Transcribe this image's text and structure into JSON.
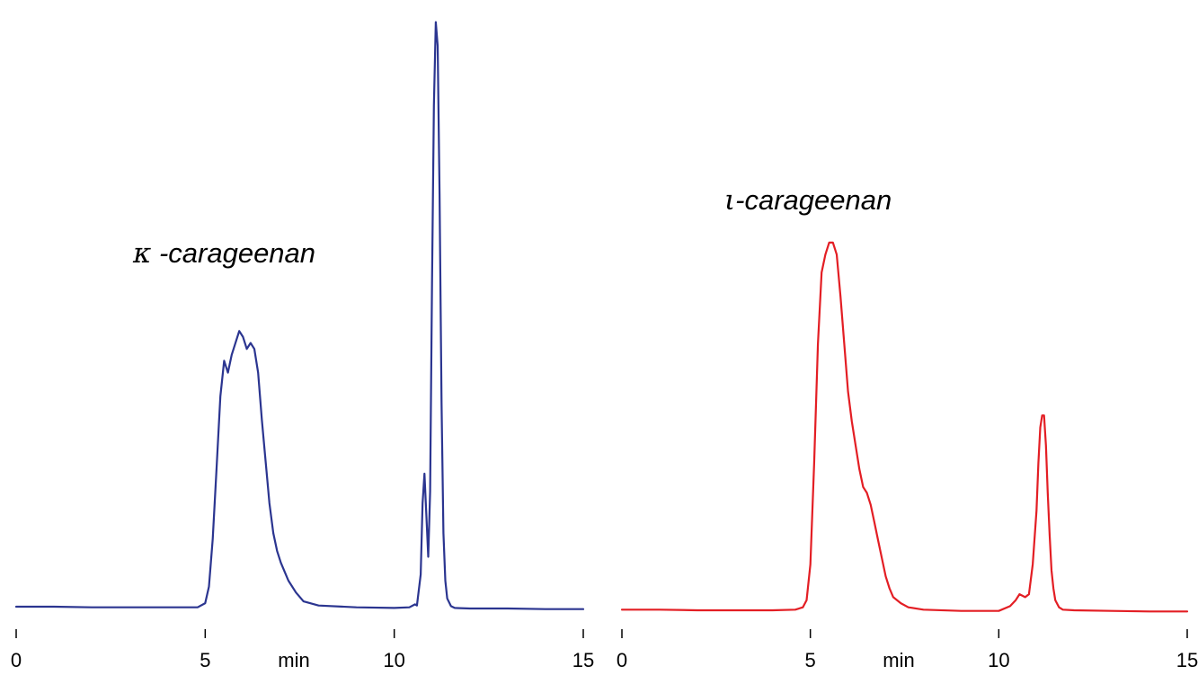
{
  "chart_data": [
    {
      "type": "line",
      "label_greek": "κ",
      "label_text": " -carageenan",
      "x_unit": "min",
      "xlim": [
        0,
        15
      ],
      "x_ticks": [
        "0",
        "5",
        "10",
        "15"
      ],
      "y_axis_shown": false,
      "y_relative_range": [
        0,
        1
      ],
      "color": "#2b3590",
      "series": [
        {
          "x": [
            0,
            1,
            2,
            3,
            4,
            4.8,
            5.0,
            5.1,
            5.2,
            5.3,
            5.4,
            5.5,
            5.6,
            5.7,
            5.8,
            5.9,
            6.0,
            6.1,
            6.2,
            6.3,
            6.4,
            6.5,
            6.6,
            6.7,
            6.8,
            6.9,
            7.0,
            7.2,
            7.4,
            7.6,
            8,
            9,
            10,
            10.4,
            10.55,
            10.6,
            10.7,
            10.75,
            10.8,
            10.85,
            10.9,
            10.95,
            11.0,
            11.05,
            11.1,
            11.15,
            11.2,
            11.25,
            11.3,
            11.35,
            11.4,
            11.5,
            11.6,
            12,
            13,
            14,
            15
          ],
          "y": [
            0.006,
            0.006,
            0.005,
            0.005,
            0.005,
            0.005,
            0.012,
            0.04,
            0.12,
            0.24,
            0.36,
            0.42,
            0.4,
            0.43,
            0.45,
            0.47,
            0.46,
            0.44,
            0.45,
            0.44,
            0.4,
            0.32,
            0.25,
            0.18,
            0.13,
            0.1,
            0.08,
            0.05,
            0.03,
            0.015,
            0.008,
            0.005,
            0.004,
            0.005,
            0.01,
            0.008,
            0.06,
            0.18,
            0.23,
            0.16,
            0.09,
            0.2,
            0.55,
            0.85,
            0.99,
            0.95,
            0.7,
            0.35,
            0.13,
            0.05,
            0.02,
            0.007,
            0.004,
            0.003,
            0.003,
            0.002,
            0.002
          ]
        }
      ]
    },
    {
      "type": "line",
      "label_greek": "ι",
      "label_text": "-carageenan",
      "x_unit": "min",
      "xlim": [
        0,
        15
      ],
      "x_ticks": [
        "0",
        "5",
        "10",
        "15"
      ],
      "y_axis_shown": false,
      "y_relative_range": [
        0,
        1
      ],
      "color": "#e31e24",
      "series": [
        {
          "x": [
            0,
            1,
            2,
            3,
            4,
            4.6,
            4.8,
            4.9,
            5.0,
            5.1,
            5.2,
            5.3,
            5.4,
            5.5,
            5.6,
            5.7,
            5.8,
            5.9,
            6.0,
            6.1,
            6.2,
            6.3,
            6.4,
            6.5,
            6.6,
            6.7,
            6.8,
            6.9,
            7.0,
            7.1,
            7.2,
            7.4,
            7.6,
            8,
            9,
            10,
            10.3,
            10.45,
            10.55,
            10.7,
            10.8,
            10.9,
            11.0,
            11.05,
            11.1,
            11.15,
            11.2,
            11.25,
            11.3,
            11.35,
            11.4,
            11.45,
            11.5,
            11.6,
            11.7,
            12,
            13,
            14,
            15
          ],
          "y": [
            0.004,
            0.004,
            0.003,
            0.003,
            0.003,
            0.004,
            0.008,
            0.02,
            0.08,
            0.25,
            0.45,
            0.57,
            0.6,
            0.62,
            0.62,
            0.6,
            0.53,
            0.45,
            0.37,
            0.32,
            0.28,
            0.24,
            0.21,
            0.2,
            0.18,
            0.15,
            0.12,
            0.09,
            0.06,
            0.04,
            0.025,
            0.015,
            0.008,
            0.004,
            0.002,
            0.002,
            0.01,
            0.02,
            0.03,
            0.025,
            0.03,
            0.08,
            0.17,
            0.25,
            0.31,
            0.33,
            0.33,
            0.28,
            0.2,
            0.13,
            0.07,
            0.04,
            0.02,
            0.008,
            0.004,
            0.003,
            0.002,
            0.001,
            0.001
          ]
        }
      ]
    }
  ]
}
